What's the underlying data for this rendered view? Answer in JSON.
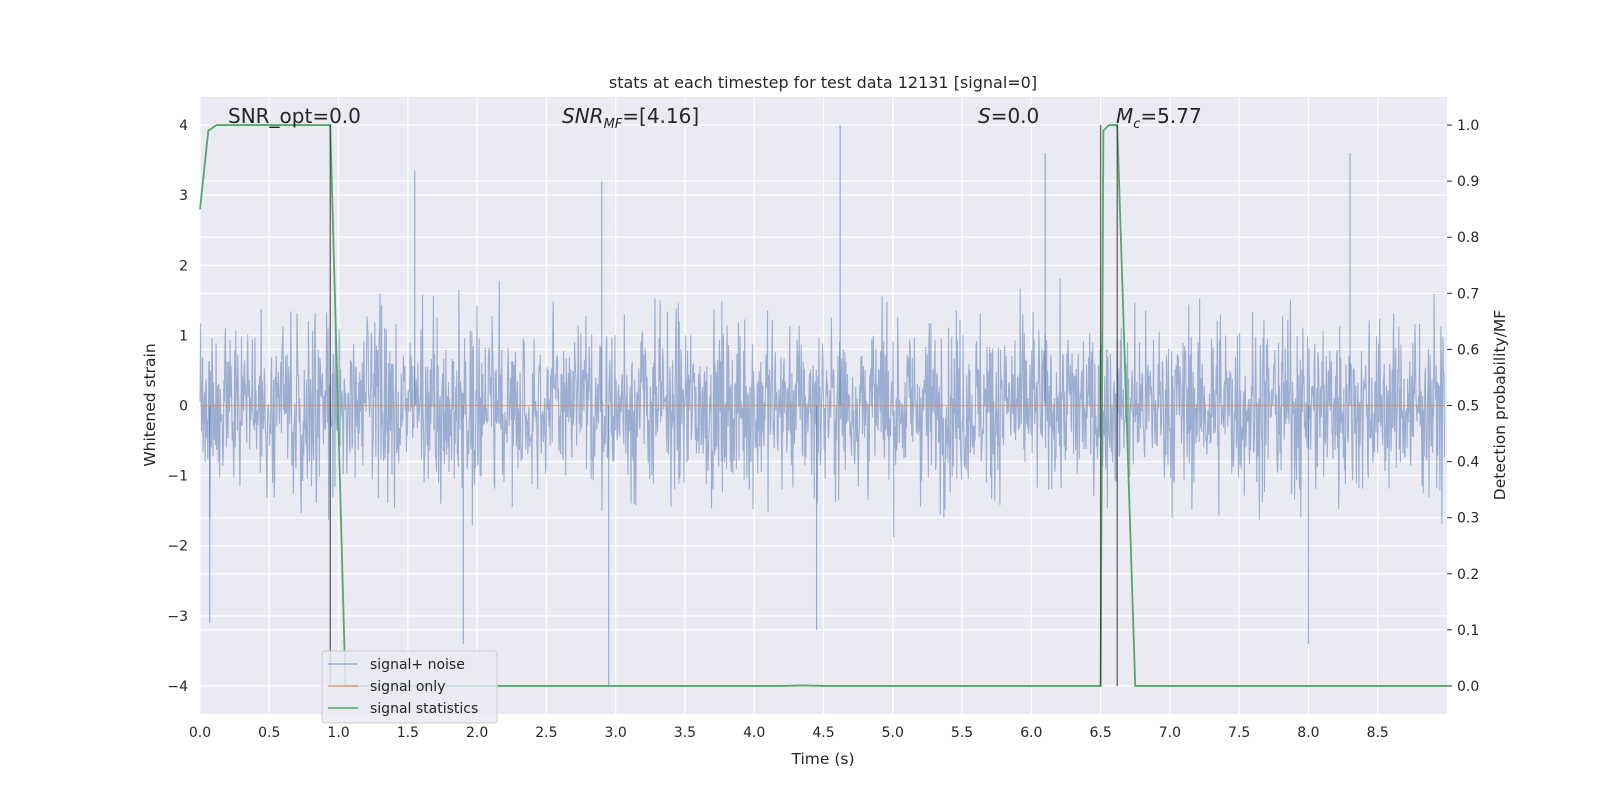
{
  "chart_data": {
    "type": "line",
    "title": "stats at each timestep for test data 12131 [signal=0]",
    "xlabel": "Time (s)",
    "ylabel_left": "Whitened strain",
    "ylabel_right": "Detection probability/MF",
    "xlim": [
      0.0,
      9.0
    ],
    "ylim_left": [
      -4.4,
      4.4
    ],
    "ylim_right": [
      -0.05,
      1.05
    ],
    "x_ticks": [
      "0.0",
      "0.5",
      "1.0",
      "1.5",
      "2.0",
      "2.5",
      "3.0",
      "3.5",
      "4.0",
      "4.5",
      "5.0",
      "5.5",
      "6.0",
      "6.5",
      "7.0",
      "7.5",
      "8.0",
      "8.5"
    ],
    "y_ticks_left": [
      "4",
      "3",
      "2",
      "1",
      "0",
      "−1",
      "−2",
      "−3",
      "−4"
    ],
    "y_ticks_right": [
      "1.0",
      "0.9",
      "0.8",
      "0.7",
      "0.6",
      "0.5",
      "0.4",
      "0.3",
      "0.2",
      "0.1",
      "0.0"
    ],
    "grid": true,
    "annotations": {
      "snr_opt": "SNR_opt=0.0",
      "snr_mf_main": "SNR",
      "snr_mf_sub": "MF",
      "snr_mf_rest": "=[4.16]",
      "s_main": "S",
      "s_rest": "=0.0",
      "mc_main": "M",
      "mc_sub": "c",
      "mc_rest": "=5.77"
    },
    "vertical_lines_x": [
      0.94,
      6.5,
      6.62
    ],
    "legend": {
      "position": "lower-left",
      "entries": [
        "signal+ noise",
        "signal only",
        "signal statistics"
      ]
    },
    "series": [
      {
        "name": "signal+ noise",
        "axis": "left",
        "color": "#4c72b0",
        "description_values": "whitened noise, amplitude mostly within ±2, peaks ≈ ±4",
        "peaks": [
          {
            "x": 4.62,
            "y": 4.0
          },
          {
            "x": 2.9,
            "y": 3.2
          },
          {
            "x": 6.1,
            "y": 3.6
          },
          {
            "x": 8.3,
            "y": 3.6
          },
          {
            "x": 1.55,
            "y": 3.35
          },
          {
            "x": 2.95,
            "y": -4.0
          },
          {
            "x": 1.9,
            "y": -3.4
          },
          {
            "x": 8.0,
            "y": -3.4
          },
          {
            "x": 0.07,
            "y": -3.1
          },
          {
            "x": 4.45,
            "y": -3.2
          }
        ]
      },
      {
        "name": "signal only",
        "axis": "left",
        "color": "#dd8452",
        "x": [
          0.0,
          9.0
        ],
        "y": [
          0.0,
          0.0
        ]
      },
      {
        "name": "signal statistics",
        "axis": "right",
        "color": "#55a868",
        "x": [
          0.0,
          0.06,
          0.12,
          0.3,
          0.9,
          0.94,
          1.05,
          1.08,
          4.2,
          4.35,
          4.5,
          6.45,
          6.5,
          6.52,
          6.56,
          6.62,
          6.75,
          6.77,
          9.0
        ],
        "y": [
          0.85,
          0.99,
          1.0,
          1.0,
          1.0,
          1.0,
          0.0,
          0.0,
          0.0,
          0.001,
          0.0,
          0.0,
          0.0,
          0.99,
          1.0,
          1.0,
          0.0,
          0.0,
          0.0
        ]
      }
    ]
  }
}
